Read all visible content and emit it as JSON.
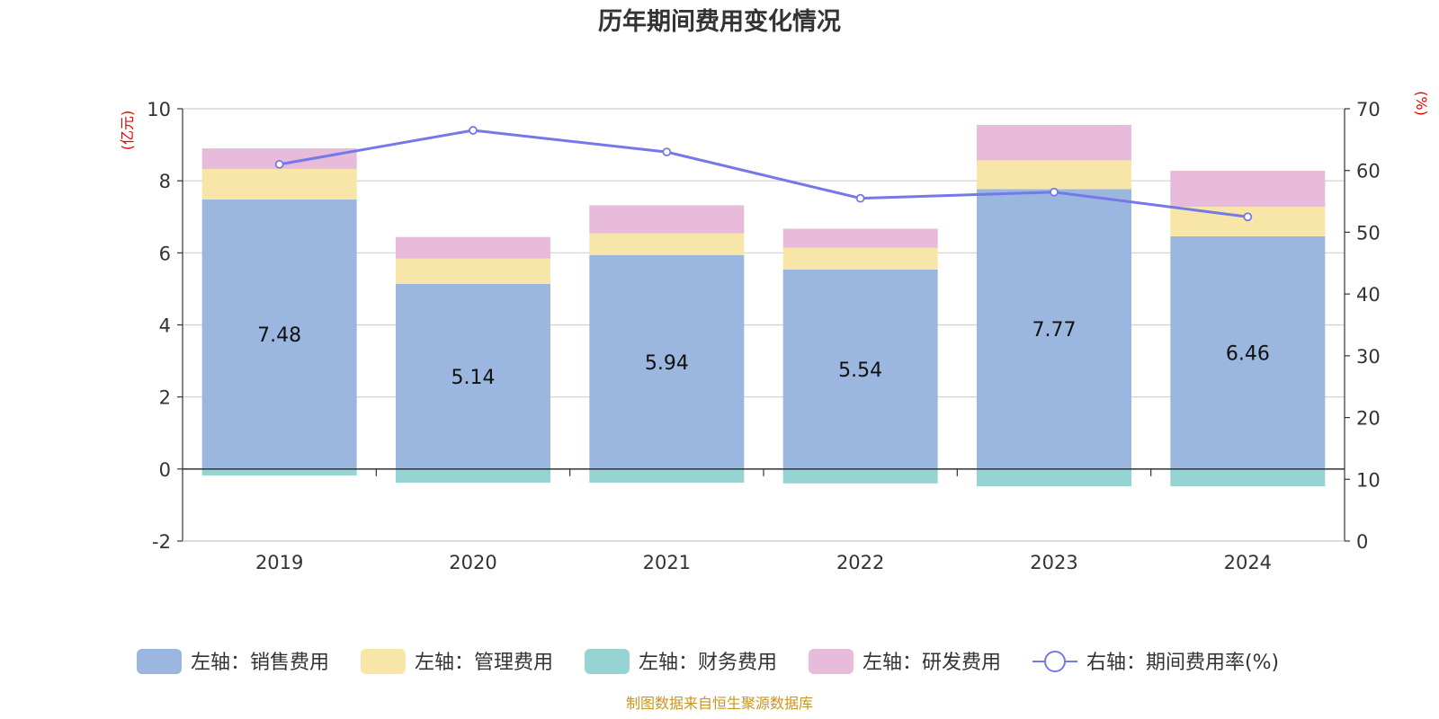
{
  "chart_data": {
    "type": "bar",
    "title": "历年期间费用变化情况",
    "categories": [
      "2019",
      "2020",
      "2021",
      "2022",
      "2023",
      "2024"
    ],
    "left_axis": {
      "unit_label": "(亿元)",
      "ylim": [
        -2,
        10
      ],
      "ticks": [
        "-2",
        "0",
        "2",
        "4",
        "6",
        "8",
        "10"
      ]
    },
    "right_axis": {
      "unit_label": "(%)",
      "ylim": [
        0,
        70
      ],
      "ticks": [
        "0",
        "10",
        "20",
        "30",
        "40",
        "50",
        "60",
        "70"
      ]
    },
    "series": [
      {
        "name": "左轴：销售费用",
        "axis": "left",
        "color": "#9bb7e0",
        "values": [
          7.48,
          5.14,
          5.94,
          5.54,
          7.77,
          6.46
        ],
        "labels": [
          "7.48",
          "5.14",
          "5.94",
          "5.54",
          "7.77",
          "6.46"
        ]
      },
      {
        "name": "左轴：管理费用",
        "axis": "left",
        "color": "#f8e6a8",
        "values": [
          0.85,
          0.7,
          0.6,
          0.6,
          0.8,
          0.82
        ]
      },
      {
        "name": "左轴：财务费用",
        "axis": "left",
        "color": "#96d4d4",
        "values": [
          -0.18,
          -0.38,
          -0.38,
          -0.4,
          -0.48,
          -0.48
        ]
      },
      {
        "name": "左轴：研发费用",
        "axis": "left",
        "color": "#e8bbda",
        "values": [
          0.57,
          0.6,
          0.78,
          0.53,
          0.98,
          1.0
        ]
      },
      {
        "name": "右轴：期间费用率(%)",
        "axis": "right",
        "type": "line",
        "color": "#7579e8",
        "values": [
          61,
          66.5,
          63,
          55.5,
          56.5,
          52.5
        ]
      }
    ],
    "legend_position": "bottom",
    "grid": true
  },
  "source_note": "制图数据来自恒生聚源数据库"
}
